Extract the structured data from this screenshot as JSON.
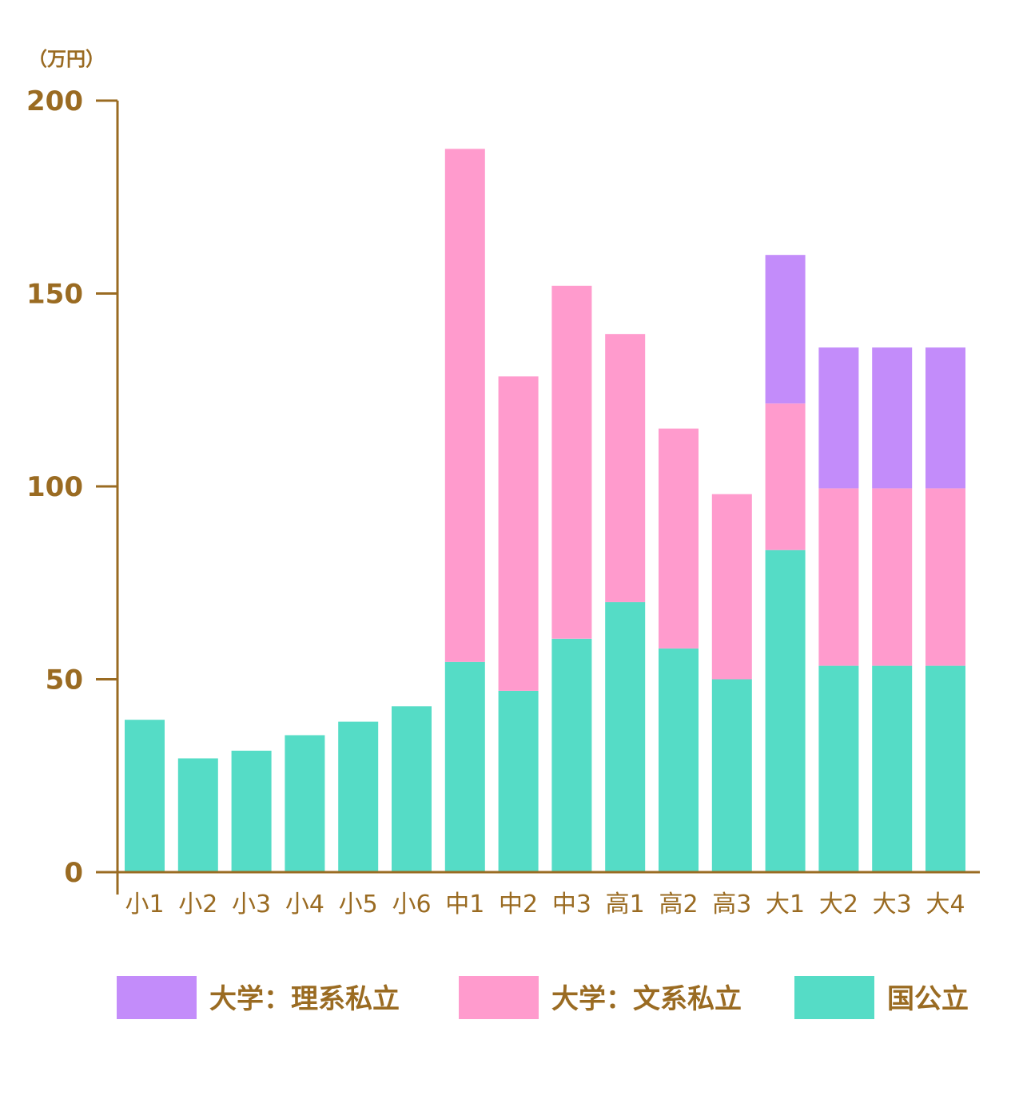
{
  "chart_data": {
    "type": "bar",
    "stacked": true,
    "unit_label": "（万円）",
    "ylim": [
      0,
      200
    ],
    "yticks": [
      "0",
      "50",
      "100",
      "150",
      "200"
    ],
    "categories": [
      "小1",
      "小2",
      "小3",
      "小4",
      "小5",
      "小6",
      "中1",
      "中2",
      "中3",
      "高1",
      "高2",
      "高3",
      "大1",
      "大2",
      "大3",
      "大4"
    ],
    "series": [
      {
        "name": "国公立",
        "color": "#55dcc6",
        "values": [
          39.5,
          29.5,
          31.5,
          35.5,
          39,
          43,
          54.5,
          47,
          60.5,
          70,
          58,
          50,
          83.5,
          53.5,
          53.5,
          53.5
        ]
      },
      {
        "name": "大学：文系私立",
        "color": "#ff9bcd",
        "values": [
          0,
          0,
          0,
          0,
          0,
          0,
          133,
          81.5,
          91.5,
          69.5,
          57,
          48,
          38,
          46,
          46,
          46
        ]
      },
      {
        "name": "大学：理系私立",
        "color": "#c38cfa",
        "values": [
          0,
          0,
          0,
          0,
          0,
          0,
          0,
          0,
          0,
          0,
          0,
          0,
          38.5,
          36.5,
          36.5,
          36.5
        ]
      }
    ],
    "legend": {
      "placement": "bottom",
      "order": [
        "大学：理系私立",
        "大学：文系私立",
        "国公立"
      ]
    },
    "axis_color": "#9a6b22"
  }
}
